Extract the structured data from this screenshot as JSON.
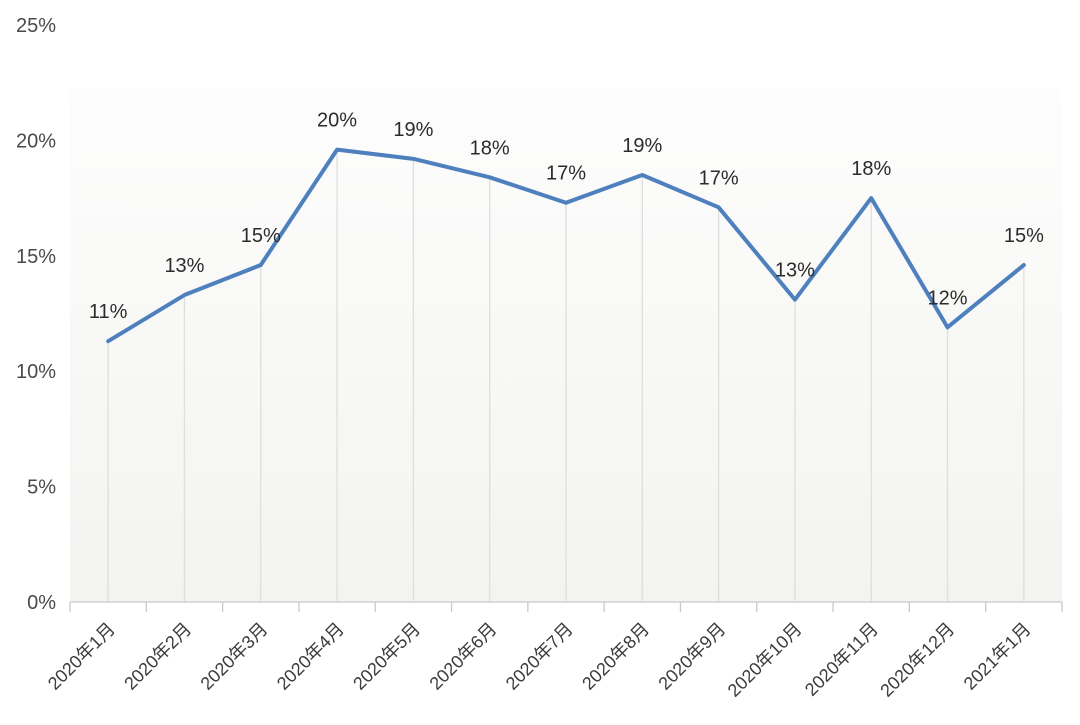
{
  "chart_data": {
    "type": "line",
    "title": "",
    "xlabel": "",
    "ylabel": "",
    "legend": "none",
    "grid": "vertical-drop-lines-only",
    "x_label_rotation": -45,
    "categories": [
      "2020年1月",
      "2020年2月",
      "2020年3月",
      "2020年4月",
      "2020年5月",
      "2020年6月",
      "2020年7月",
      "2020年8月",
      "2020年9月",
      "2020年10月",
      "2020年11月",
      "2020年12月",
      "2021年1月"
    ],
    "values": [
      11.3,
      13.3,
      14.6,
      19.6,
      19.2,
      18.4,
      17.3,
      18.5,
      17.1,
      13.1,
      17.5,
      11.9,
      14.6
    ],
    "point_labels": [
      "11%",
      "13%",
      "15%",
      "20%",
      "19%",
      "18%",
      "17%",
      "19%",
      "17%",
      "13%",
      "18%",
      "12%",
      "15%"
    ],
    "y_axis": {
      "min": 0,
      "max": 25,
      "tick_values": [
        0,
        5,
        10,
        15,
        20,
        25
      ],
      "tick_labels": [
        "0%",
        "5%",
        "10%",
        "15%",
        "20%",
        "25%"
      ]
    },
    "colors": {
      "line": "#4e80be",
      "point_label": "#2b2b2b",
      "y_tick_label": "#4a4a4a",
      "x_tick_label": "#3c3c3c",
      "drop_line": "#dedede",
      "axis_line": "#d2d2d2",
      "tick_mark": "#c9c9c9",
      "plot_bg_top": "#fdfdfd",
      "plot_bg_bottom": "#f3f3f0",
      "page_bg": "#ffffff"
    }
  }
}
